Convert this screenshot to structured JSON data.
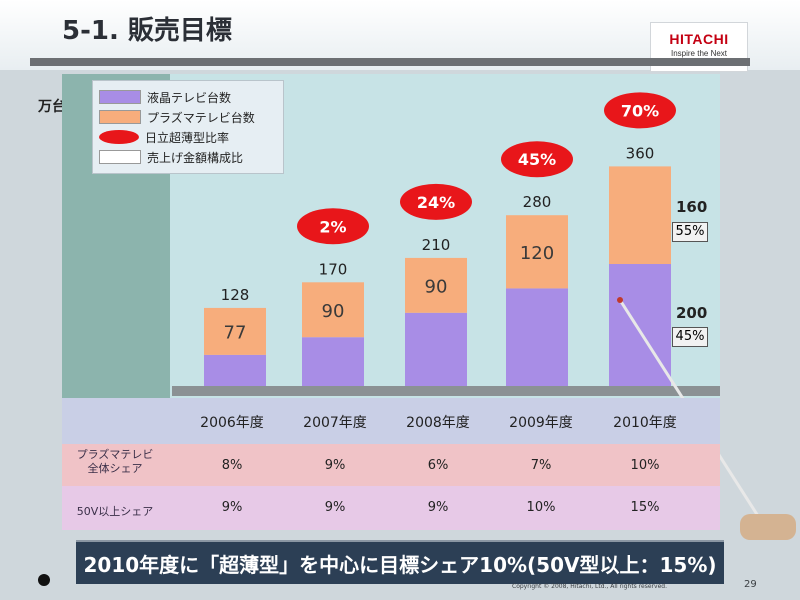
{
  "header": {
    "title": "5-1. 販売目標",
    "brand": "HITACHI",
    "tagline": "Inspire the Next"
  },
  "unit_label": "万台",
  "legend": {
    "lcd": "液晶テレビ台数",
    "plasma": "プラズマテレビ台数",
    "ratio": "日立超薄型比率",
    "composition": "売上げ金額構成比"
  },
  "colors": {
    "lcd": "#a88de6",
    "plasma": "#f7ad7c",
    "ratio": "#e8161a",
    "plot_bg": "#c7e3e6",
    "left_band": "#8cb4ad"
  },
  "chart_data": {
    "type": "bar",
    "title": "",
    "xlabel": "",
    "ylabel": "万台",
    "categories": [
      "2006年度",
      "2007年度",
      "2008年度",
      "2009年度",
      "2010年度"
    ],
    "series": [
      {
        "name": "液晶テレビ台数",
        "values": [
          51,
          80,
          120,
          160,
          200
        ]
      },
      {
        "name": "プラズマテレビ台数",
        "values": [
          77,
          90,
          90,
          120,
          160
        ]
      }
    ],
    "totals": [
      128,
      170,
      210,
      280,
      360
    ],
    "value_labels_plasma": [
      "77",
      "90",
      "90",
      "120",
      ""
    ],
    "ratio_labels": [
      "",
      "2%",
      "24%",
      "45%",
      "70%"
    ],
    "composition_2010": {
      "plasma_value": "160",
      "plasma_share": "55%",
      "lcd_value": "200",
      "lcd_share": "45%"
    },
    "ylim": [
      0,
      400
    ]
  },
  "table": {
    "years": [
      "2006年度",
      "2007年度",
      "2008年度",
      "2009年度",
      "2010年度"
    ],
    "plasma_label_line1": "プラズマテレビ",
    "plasma_label_line2": "全体シェア",
    "plasma_share": [
      "8%",
      "9%",
      "6%",
      "7%",
      "10%"
    ],
    "big_label": "50V以上シェア",
    "big_share": [
      "9%",
      "9%",
      "9%",
      "10%",
      "15%"
    ]
  },
  "banner": "2010年度に「超薄型」を中心に目標シェア10%(50V型以上：15%)",
  "footer": {
    "copyright": "Copyright © 2008, Hitachi, Ltd., All rights reserved.",
    "page": "29"
  }
}
